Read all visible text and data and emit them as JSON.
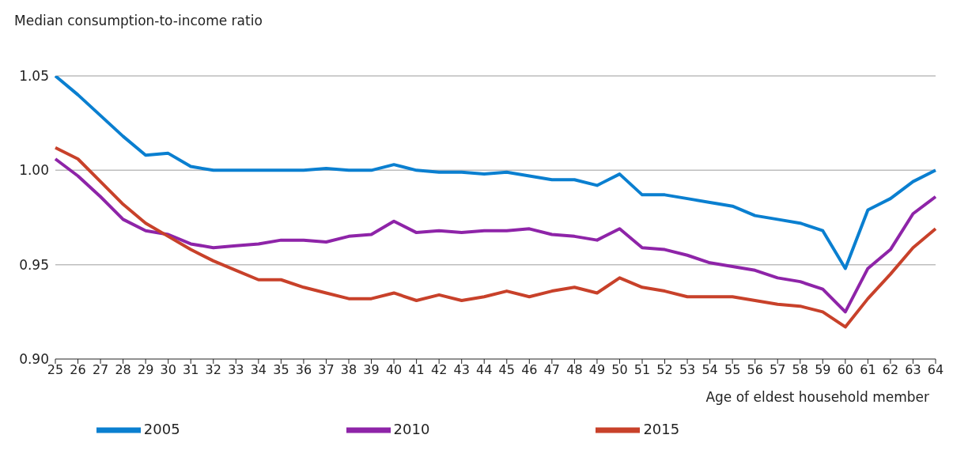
{
  "chart_data": {
    "type": "line",
    "ylabel": "Median consumption-to-income ratio",
    "xlabel": "Age of eldest household member",
    "categories": [
      "25",
      "26",
      "27",
      "28",
      "29",
      "30",
      "31",
      "32",
      "33",
      "34",
      "35",
      "36",
      "37",
      "38",
      "39",
      "40",
      "41",
      "42",
      "43",
      "44",
      "45",
      "46",
      "47",
      "48",
      "49",
      "50",
      "51",
      "52",
      "53",
      "54",
      "55",
      "56",
      "57",
      "58",
      "59",
      "60",
      "61",
      "62",
      "63",
      "64"
    ],
    "series": [
      {
        "name": "2005",
        "color": "#0a7fd0",
        "values": [
          1.05,
          1.04,
          1.029,
          1.018,
          1.008,
          1.009,
          1.002,
          1.0,
          1.0,
          1.0,
          1.0,
          1.0,
          1.001,
          1.0,
          1.0,
          1.003,
          1.0,
          0.999,
          0.999,
          0.998,
          0.999,
          0.997,
          0.995,
          0.995,
          0.992,
          0.998,
          0.987,
          0.987,
          0.985,
          0.983,
          0.981,
          0.976,
          0.974,
          0.972,
          0.968,
          0.948,
          0.979,
          0.985,
          0.994,
          1.0
        ]
      },
      {
        "name": "2010",
        "color": "#8e24a8",
        "values": [
          1.006,
          0.997,
          0.986,
          0.974,
          0.968,
          0.966,
          0.961,
          0.959,
          0.96,
          0.961,
          0.963,
          0.963,
          0.962,
          0.965,
          0.966,
          0.973,
          0.967,
          0.968,
          0.967,
          0.968,
          0.968,
          0.969,
          0.966,
          0.965,
          0.963,
          0.969,
          0.959,
          0.958,
          0.955,
          0.951,
          0.949,
          0.947,
          0.943,
          0.941,
          0.937,
          0.925,
          0.948,
          0.958,
          0.977,
          0.986
        ]
      },
      {
        "name": "2015",
        "color": "#c8412a",
        "values": [
          1.012,
          1.006,
          0.994,
          0.982,
          0.972,
          0.965,
          0.958,
          0.952,
          0.947,
          0.942,
          0.942,
          0.938,
          0.935,
          0.932,
          0.932,
          0.935,
          0.931,
          0.934,
          0.931,
          0.933,
          0.936,
          0.933,
          0.936,
          0.938,
          0.935,
          0.943,
          0.938,
          0.936,
          0.933,
          0.933,
          0.933,
          0.931,
          0.929,
          0.928,
          0.925,
          0.917,
          0.932,
          0.945,
          0.959,
          0.969
        ]
      }
    ],
    "ylim": [
      0.9,
      1.05
    ],
    "yticks": [
      {
        "value": 0.9,
        "label": "0.90"
      },
      {
        "value": 0.95,
        "label": "0.95"
      },
      {
        "value": 1.0,
        "label": "1.00"
      },
      {
        "value": 1.05,
        "label": "1.05"
      }
    ],
    "grid": "y",
    "legend": "bottom",
    "marker": "none",
    "line_style": "solid"
  }
}
